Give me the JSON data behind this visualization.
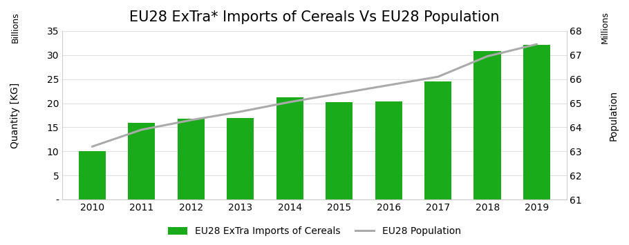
{
  "title": "EU28 ExTra* Imports of Cereals Vs EU28 Population",
  "years": [
    2010,
    2011,
    2012,
    2013,
    2014,
    2015,
    2016,
    2017,
    2018,
    2019
  ],
  "bar_values": [
    10.1,
    16.0,
    16.8,
    17.0,
    21.2,
    20.2,
    20.4,
    24.5,
    30.8,
    32.1
  ],
  "bar_color": "#1aab1a",
  "line_values": [
    63.2,
    63.9,
    64.3,
    64.65,
    65.05,
    65.4,
    65.75,
    66.1,
    66.95,
    67.45
  ],
  "line_color": "#aaaaaa",
  "line_width": 2.2,
  "ylabel_left": "Quantity [KG]",
  "ylabel_right": "Population",
  "ylabel_left_billions": "Billions",
  "ylabel_right_millions": "Millions",
  "ylim_left": [
    0,
    35
  ],
  "ylim_right": [
    61,
    68
  ],
  "yticks_left": [
    0,
    5,
    10,
    15,
    20,
    25,
    30,
    35
  ],
  "ytick_labels_left": [
    "-",
    "5",
    "10",
    "15",
    "20",
    "25",
    "30",
    "35"
  ],
  "yticks_right": [
    61,
    62,
    63,
    64,
    65,
    66,
    67,
    68
  ],
  "legend_bar_label": "EU28 ExTra Imports of Cereals",
  "legend_line_label": "EU28 Population",
  "background_color": "#ffffff",
  "title_fontsize": 15,
  "axis_label_fontsize": 10,
  "tick_fontsize": 10,
  "legend_fontsize": 10,
  "grid_color": "#e0e0e0",
  "spine_color": "#cccccc"
}
